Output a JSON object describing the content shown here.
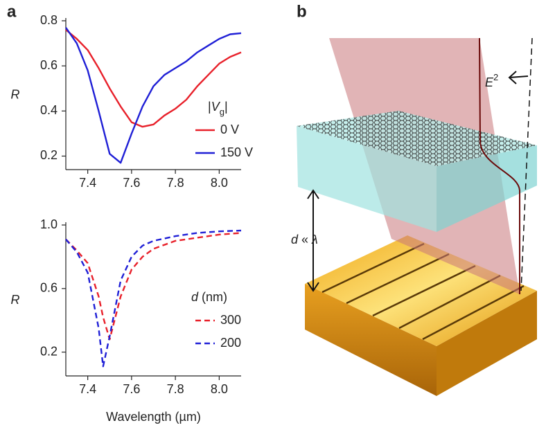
{
  "panels": [
    "a",
    "b"
  ],
  "chart_data": [
    {
      "type": "line",
      "y_label": "R",
      "x": [
        7.3,
        7.35,
        7.4,
        7.45,
        7.5,
        7.55,
        7.6,
        7.65,
        7.7,
        7.75,
        7.8,
        7.85,
        7.9,
        7.95,
        8.0,
        8.05,
        8.1
      ],
      "series": [
        {
          "name": "0 V",
          "color": "#e8202a",
          "dash": false,
          "values": [
            0.76,
            0.72,
            0.67,
            0.59,
            0.5,
            0.42,
            0.35,
            0.33,
            0.34,
            0.38,
            0.41,
            0.45,
            0.51,
            0.56,
            0.61,
            0.64,
            0.66
          ]
        },
        {
          "name": "150 V",
          "color": "#1f1fd6",
          "dash": false,
          "values": [
            0.77,
            0.7,
            0.58,
            0.4,
            0.21,
            0.17,
            0.3,
            0.42,
            0.51,
            0.56,
            0.59,
            0.62,
            0.66,
            0.69,
            0.72,
            0.74,
            0.745
          ]
        }
      ],
      "xlim": [
        7.3,
        8.1
      ],
      "ylim": [
        0.14,
        0.8
      ],
      "xticks": [
        7.4,
        7.6,
        7.8,
        {
          "value": 8,
          "label": "8.0"
        }
      ],
      "yticks": [
        0.2,
        0.4,
        0.6,
        0.8
      ],
      "legend_title": [
        "|",
        "V",
        "g",
        "|"
      ]
    },
    {
      "type": "line",
      "y_label": "R",
      "x_label": "Wavelength (µm)",
      "x": [
        7.3,
        7.35,
        7.4,
        7.45,
        7.47,
        7.5,
        7.55,
        7.6,
        7.65,
        7.7,
        7.8,
        7.9,
        8.0,
        8.1
      ],
      "series": [
        {
          "name": "300",
          "color": "#e8202a",
          "dash": true,
          "values": [
            0.91,
            0.84,
            0.76,
            0.55,
            0.42,
            0.28,
            0.55,
            0.72,
            0.8,
            0.85,
            0.9,
            0.92,
            0.94,
            0.95
          ]
        },
        {
          "name": "200",
          "color": "#1f1fd6",
          "dash": true,
          "values": [
            0.91,
            0.83,
            0.7,
            0.35,
            0.11,
            0.3,
            0.65,
            0.8,
            0.87,
            0.9,
            0.93,
            0.95,
            0.96,
            0.965
          ]
        }
      ],
      "xlim": [
        7.3,
        8.1
      ],
      "ylim": [
        0.05,
        1.0
      ],
      "xticks": [
        7.4,
        7.6,
        7.8,
        {
          "value": 8,
          "label": "8.0"
        }
      ],
      "yticks": [
        0.2,
        0.6,
        {
          "value": 1,
          "label": "1.0"
        }
      ],
      "legend_title": [
        "d",
        " (nm)"
      ]
    }
  ],
  "diagram": {
    "field_label": [
      "E",
      "2"
    ],
    "spacing_label": [
      "d",
      " « ",
      "λ"
    ]
  }
}
